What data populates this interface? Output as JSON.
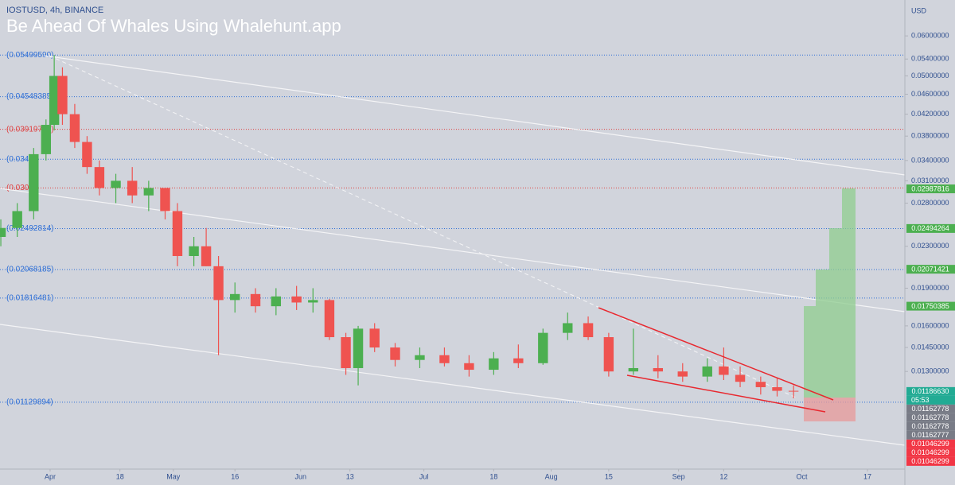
{
  "chart_data": {
    "type": "candlestick",
    "title": "IOSTUSD, 4h, BINANCE",
    "watermark": "Be Ahead Of Whales Using Whalehunt.app",
    "y_unit": "USD",
    "log_scale": true,
    "up_color": "#4caf50",
    "down_color": "#ef5350",
    "xlim": [
      -12.2,
      208.1
    ],
    "ylim": [
      0.00833,
      0.0694
    ],
    "xticks": [
      {
        "value": 0,
        "label": "Apr"
      },
      {
        "value": 17,
        "label": "18"
      },
      {
        "value": 30,
        "label": "May"
      },
      {
        "value": 45,
        "label": "16"
      },
      {
        "value": 61,
        "label": "Jun"
      },
      {
        "value": 73,
        "label": "13"
      },
      {
        "value": 91,
        "label": "Jul"
      },
      {
        "value": 108,
        "label": "18"
      },
      {
        "value": 122,
        "label": "Aug"
      },
      {
        "value": 136,
        "label": "15"
      },
      {
        "value": 153,
        "label": "Sep"
      },
      {
        "value": 164,
        "label": "12"
      },
      {
        "value": 183,
        "label": "Oct"
      },
      {
        "value": 199,
        "label": "17"
      }
    ],
    "yticks": [
      {
        "value": 0.06,
        "label": "0.06000000"
      },
      {
        "value": 0.054,
        "label": "0.05400000"
      },
      {
        "value": 0.05,
        "label": "0.05000000"
      },
      {
        "value": 0.046,
        "label": "0.04600000"
      },
      {
        "value": 0.042,
        "label": "0.04200000"
      },
      {
        "value": 0.038,
        "label": "0.03800000"
      },
      {
        "value": 0.034,
        "label": "0.03400000"
      },
      {
        "value": 0.031,
        "label": "0.03100000"
      },
      {
        "value": 0.028,
        "label": "0.02800000"
      },
      {
        "value": 0.023,
        "label": "0.02300000"
      },
      {
        "value": 0.019,
        "label": "0.01900000"
      },
      {
        "value": 0.016,
        "label": "0.01600000"
      },
      {
        "value": 0.0145,
        "label": "0.01450000"
      },
      {
        "value": 0.013,
        "label": "0.01300000"
      }
    ],
    "levels": [
      {
        "value": 0.0549959,
        "label": "(0.05499590)",
        "color": "#2f6fd6"
      },
      {
        "value": 0.04548385,
        "label": "(0.04548385)",
        "color": "#2f6fd6"
      },
      {
        "value": 0.03919702,
        "label": "(0.03919702)",
        "color": "#e04040"
      },
      {
        "value": 0.0342,
        "label": "(0.03420",
        "color": "#2f6fd6"
      },
      {
        "value": 0.03000621,
        "label": "(0.0300",
        "color": "#e04040"
      },
      {
        "value": 0.02492814,
        "label": "(0.02492814)",
        "color": "#2f6fd6"
      },
      {
        "value": 0.02068185,
        "label": "(0.02068185)",
        "color": "#2f6fd6"
      },
      {
        "value": 0.01816481,
        "label": "(0.01816481)",
        "color": "#2f6fd6"
      },
      {
        "value": 0.01129894,
        "label": "(0.01129894)",
        "color": "#2f6fd6"
      }
    ],
    "price_labels": [
      {
        "value": 0.02987816,
        "label": "0.02987816",
        "color": "#4caf50"
      },
      {
        "value": 0.02494264,
        "label": "0.02494264",
        "color": "#4caf50"
      },
      {
        "value": 0.02071421,
        "label": "0.02071421",
        "color": "#4caf50"
      },
      {
        "value": 0.01750385,
        "label": "0.01750385",
        "color": "#4caf50"
      },
      {
        "value": 0.0118663,
        "label": "0.01186630",
        "color": "#22ab94",
        "countdown": "05:53"
      },
      {
        "value": 0.01162778,
        "label": "0.01162778",
        "color": "#787b86"
      },
      {
        "value": 0.01162778,
        "label": "0.01162778",
        "color": "#787b86"
      },
      {
        "value": 0.01162778,
        "label": "0.01162778",
        "color": "#787b86"
      },
      {
        "value": 0.01162777,
        "label": "0.01162777",
        "color": "#787b86"
      },
      {
        "value": 0.01046299,
        "label": "0.01046299",
        "color": "#f23645"
      },
      {
        "value": 0.01046299,
        "label": "0.01046299",
        "color": "#f23645"
      },
      {
        "value": 0.01046299,
        "label": "0.01046299",
        "color": "#f23645"
      }
    ],
    "candles": {
      "x": [
        -12,
        -8,
        -4,
        -1,
        1,
        3,
        6,
        9,
        12,
        16,
        20,
        24,
        28,
        31,
        35,
        38,
        41,
        45,
        50,
        55,
        60,
        64,
        68,
        72,
        75,
        79,
        84,
        90,
        96,
        102,
        108,
        114,
        120,
        126,
        131,
        136,
        142,
        148,
        154,
        160,
        164,
        168,
        173,
        177,
        181
      ],
      "open": [
        0.024,
        0.025,
        0.027,
        0.035,
        0.04,
        0.05,
        0.042,
        0.037,
        0.033,
        0.03,
        0.031,
        0.029,
        0.03,
        0.027,
        0.022,
        0.023,
        0.021,
        0.018,
        0.0185,
        0.0175,
        0.0183,
        0.0178,
        0.018,
        0.0152,
        0.0132,
        0.0158,
        0.0145,
        0.0137,
        0.014,
        0.0135,
        0.0131,
        0.0138,
        0.0135,
        0.0155,
        0.0162,
        0.0152,
        0.013,
        0.0132,
        0.013,
        0.0127,
        0.0133,
        0.0128,
        0.0124,
        0.0121,
        0.0119
      ],
      "high": [
        0.026,
        0.028,
        0.036,
        0.041,
        0.055,
        0.052,
        0.044,
        0.038,
        0.034,
        0.032,
        0.033,
        0.031,
        0.03,
        0.028,
        0.024,
        0.025,
        0.022,
        0.0195,
        0.019,
        0.019,
        0.0192,
        0.019,
        0.0181,
        0.0155,
        0.016,
        0.0162,
        0.0148,
        0.0145,
        0.0145,
        0.014,
        0.0142,
        0.0147,
        0.0158,
        0.017,
        0.0167,
        0.0155,
        0.0158,
        0.014,
        0.0135,
        0.0138,
        0.0145,
        0.0133,
        0.0127,
        0.0126,
        0.0122
      ],
      "low": [
        0.023,
        0.024,
        0.026,
        0.034,
        0.039,
        0.04,
        0.036,
        0.032,
        0.029,
        0.028,
        0.028,
        0.027,
        0.026,
        0.021,
        0.021,
        0.021,
        0.014,
        0.017,
        0.017,
        0.0168,
        0.0172,
        0.017,
        0.015,
        0.0128,
        0.0122,
        0.0142,
        0.0133,
        0.0132,
        0.0133,
        0.0127,
        0.0128,
        0.0132,
        0.0134,
        0.015,
        0.015,
        0.0127,
        0.0128,
        0.0126,
        0.0124,
        0.0124,
        0.0125,
        0.0121,
        0.0117,
        0.0116,
        0.0115
      ],
      "close": [
        0.025,
        0.027,
        0.035,
        0.04,
        0.05,
        0.042,
        0.037,
        0.033,
        0.03,
        0.031,
        0.029,
        0.03,
        0.027,
        0.022,
        0.023,
        0.021,
        0.018,
        0.0185,
        0.0175,
        0.0183,
        0.0178,
        0.018,
        0.0152,
        0.0132,
        0.0158,
        0.0145,
        0.0137,
        0.014,
        0.0135,
        0.0131,
        0.0138,
        0.0135,
        0.0155,
        0.0162,
        0.0152,
        0.013,
        0.0132,
        0.013,
        0.0127,
        0.0133,
        0.0128,
        0.0124,
        0.0121,
        0.0119,
        0.01187
      ]
    }
  }
}
